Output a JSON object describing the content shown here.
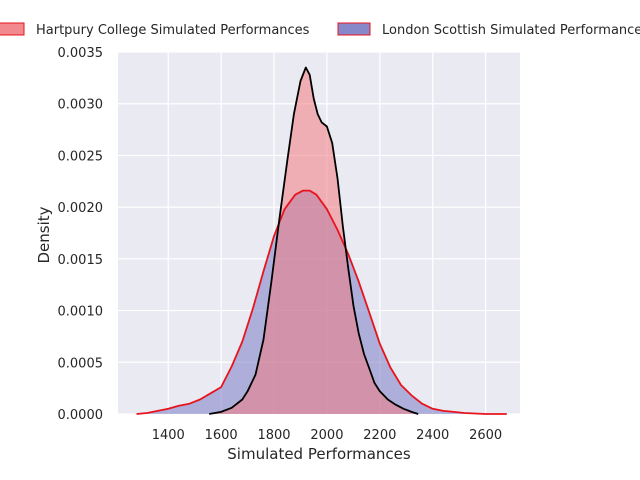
{
  "chart_data": {
    "type": "area",
    "xlabel": "Simulated Performances",
    "ylabel": "Density",
    "xlim": [
      1210,
      2730
    ],
    "ylim": [
      0,
      0.0035
    ],
    "x_ticks": [
      1400,
      1600,
      1800,
      2000,
      2200,
      2400,
      2600
    ],
    "y_ticks": [
      0.0,
      0.0005,
      0.001,
      0.0015,
      0.002,
      0.0025,
      0.003,
      0.0035
    ],
    "y_tick_labels": [
      "0.0000",
      "0.0005",
      "0.0010",
      "0.0015",
      "0.0020",
      "0.0025",
      "0.0030",
      "0.0035"
    ],
    "grid": true,
    "legend_position": "top",
    "series": [
      {
        "name": "Hartpury College Simulated Performances",
        "fill": "#f07c82",
        "line": "#000000",
        "x": [
          1555,
          1600,
          1640,
          1680,
          1700,
          1730,
          1760,
          1790,
          1820,
          1850,
          1875,
          1900,
          1920,
          1935,
          1950,
          1965,
          1980,
          2000,
          2020,
          2040,
          2060,
          2080,
          2100,
          2120,
          2140,
          2160,
          2180,
          2200,
          2230,
          2260,
          2290,
          2320,
          2345
        ],
        "y": [
          0.0,
          2e-05,
          6e-05,
          0.00014,
          0.00022,
          0.00038,
          0.00072,
          0.00128,
          0.00188,
          0.00245,
          0.0029,
          0.00322,
          0.00335,
          0.00328,
          0.00305,
          0.0029,
          0.00282,
          0.00278,
          0.00262,
          0.00228,
          0.00182,
          0.00142,
          0.00105,
          0.00078,
          0.00058,
          0.00044,
          0.0003,
          0.00022,
          0.00014,
          9e-05,
          5e-05,
          2e-05,
          0.0
        ]
      },
      {
        "name": "London Scottish Simulated Performances",
        "fill": "#7a7bc4",
        "line": "#e8141c",
        "x": [
          1280,
          1320,
          1360,
          1400,
          1440,
          1480,
          1520,
          1560,
          1600,
          1640,
          1680,
          1720,
          1760,
          1800,
          1840,
          1880,
          1910,
          1935,
          1960,
          2000,
          2040,
          2080,
          2120,
          2160,
          2200,
          2240,
          2280,
          2320,
          2360,
          2400,
          2440,
          2480,
          2520,
          2560,
          2600,
          2640,
          2680
        ],
        "y": [
          0.0,
          1e-05,
          3e-05,
          5e-05,
          8e-05,
          0.0001,
          0.00014,
          0.0002,
          0.00026,
          0.00046,
          0.0007,
          0.00102,
          0.00138,
          0.00172,
          0.00198,
          0.00212,
          0.00216,
          0.00216,
          0.00212,
          0.00198,
          0.00178,
          0.00155,
          0.00128,
          0.00098,
          0.00068,
          0.00045,
          0.00028,
          0.00018,
          0.0001,
          5e-05,
          3e-05,
          2e-05,
          1e-05,
          5e-06,
          0.0,
          0.0,
          0.0
        ]
      }
    ]
  }
}
